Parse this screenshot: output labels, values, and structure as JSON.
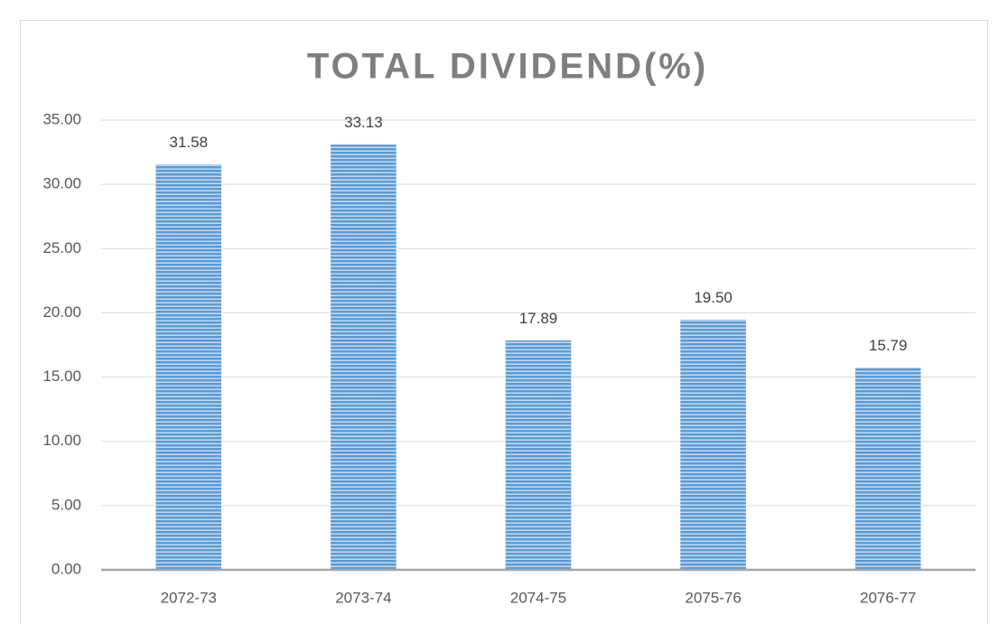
{
  "chart_data": {
    "type": "bar",
    "title": "TOTAL DIVIDEND(%)",
    "categories": [
      "2072-73",
      "2073-74",
      "2074-75",
      "2075-76",
      "2076-77"
    ],
    "values": [
      31.58,
      33.13,
      17.89,
      19.5,
      15.79
    ],
    "value_labels": [
      "31.58",
      "33.13",
      "17.89",
      "19.50",
      "15.79"
    ],
    "color": "#5b9bd5",
    "ylim": [
      0,
      35
    ],
    "yticks": [
      {
        "value": 0,
        "label": "0.00"
      },
      {
        "value": 5,
        "label": "5.00"
      },
      {
        "value": 10,
        "label": "10.00"
      },
      {
        "value": 15,
        "label": "15.00"
      },
      {
        "value": 20,
        "label": "20.00"
      },
      {
        "value": 25,
        "label": "25.00"
      },
      {
        "value": 30,
        "label": "30.00"
      },
      {
        "value": 35,
        "label": "35.00"
      }
    ],
    "grid": true
  }
}
